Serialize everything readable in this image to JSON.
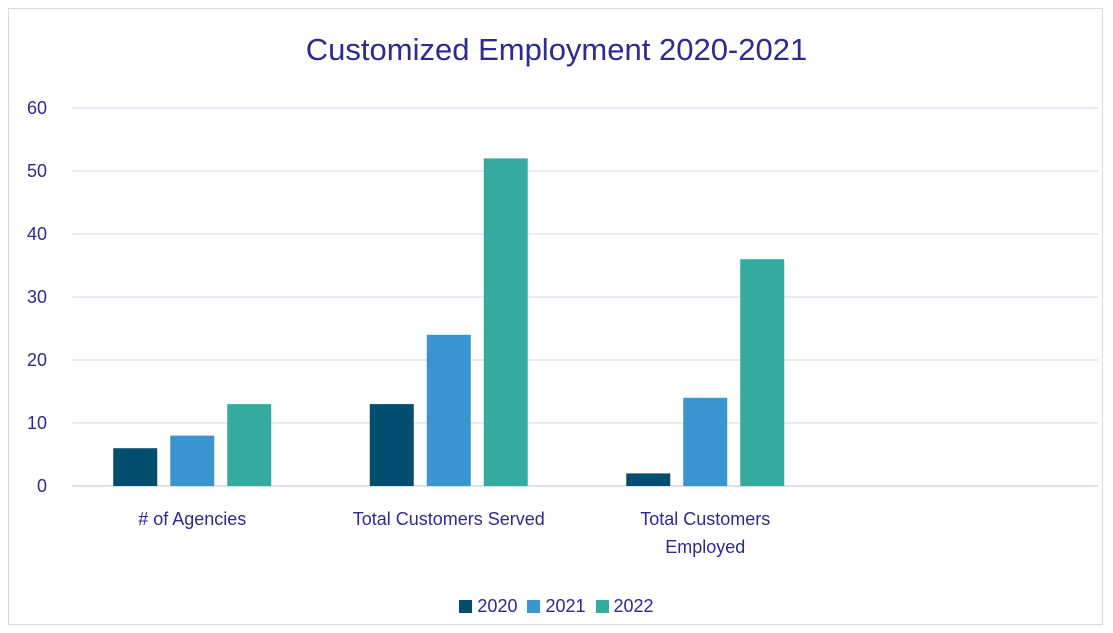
{
  "chart_data": {
    "type": "bar",
    "title": "Customized Employment 2020-2021",
    "categories": [
      "# of Agencies",
      "Total Customers Served",
      "Total Customers Employed"
    ],
    "category_lines": [
      [
        "# of Agencies"
      ],
      [
        "Total Customers Served"
      ],
      [
        "Total Customers",
        "Employed"
      ]
    ],
    "series": [
      {
        "name": "2020",
        "values": [
          6,
          13,
          2
        ],
        "color": "#034e6e"
      },
      {
        "name": "2021",
        "values": [
          8,
          24,
          14
        ],
        "color": "#3a94d0"
      },
      {
        "name": "2022",
        "values": [
          13,
          52,
          36
        ],
        "color": "#34aba1"
      }
    ],
    "ylim": [
      0,
      60
    ],
    "yticks": [
      0,
      10,
      20,
      30,
      40,
      50,
      60
    ],
    "grid": true,
    "legend_position": "bottom",
    "xlabel": "",
    "ylabel": ""
  }
}
